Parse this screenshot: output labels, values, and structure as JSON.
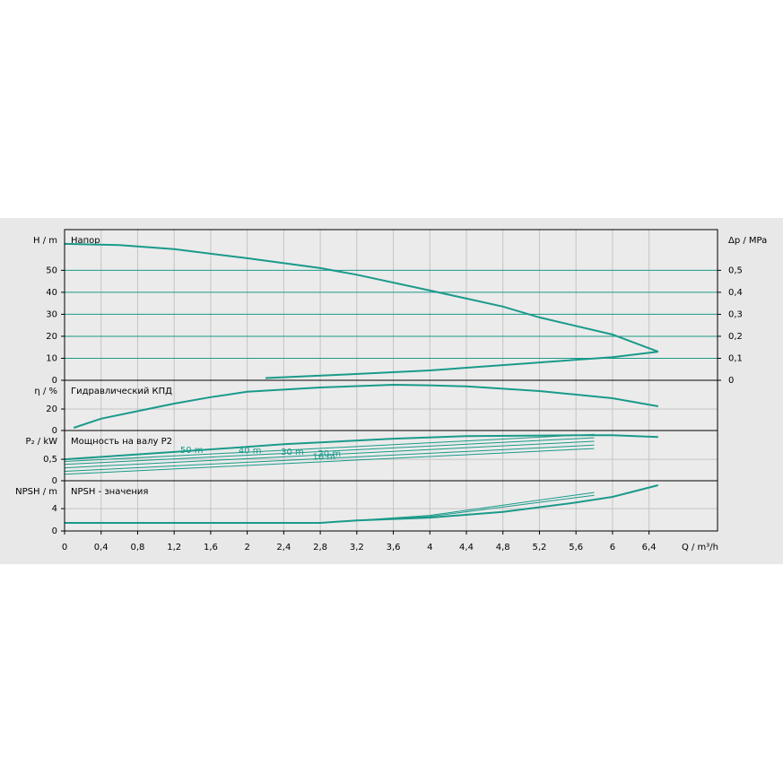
{
  "chart_data": [
    {
      "type": "line",
      "title": "Напор",
      "ylabel": "H / m",
      "y2label": "Δp / MPa",
      "xlim": [
        0,
        7.15
      ],
      "ylim": [
        0,
        68.5
      ],
      "yticks": [
        0,
        10,
        20,
        30,
        40,
        50
      ],
      "y2lim": [
        0,
        0.685
      ],
      "y2ticks": [
        0,
        {
          "value": 0.1,
          "label": "0,1"
        },
        {
          "value": 0.2,
          "label": "0,2"
        },
        {
          "value": 0.3,
          "label": "0,3"
        },
        {
          "value": 0.4,
          "label": "0,4"
        },
        {
          "value": 0.5,
          "label": "0,5"
        }
      ],
      "grid_color": "#1a9a8a",
      "series": [
        {
          "color": "#1a9a8a",
          "linewidth": 2,
          "x": [
            0,
            0.6,
            1.2,
            2,
            2.8,
            3.2,
            4,
            4.8,
            5.2,
            6,
            6.5
          ],
          "values": [
            62,
            61.5,
            59.6,
            55.5,
            51,
            48,
            40.8,
            33.5,
            28.6,
            20.8,
            13
          ]
        },
        {
          "color": "#1a9a8a",
          "linewidth": 2,
          "x": [
            2.2,
            3,
            4,
            5,
            6,
            6.5
          ],
          "values": [
            1,
            2.5,
            4.5,
            7.5,
            10.5,
            13
          ]
        }
      ]
    },
    {
      "type": "line",
      "title": "Гидравлический КПД",
      "ylabel": "η / %",
      "xlim": [
        0,
        7.15
      ],
      "ylim": [
        0,
        46.7
      ],
      "yticks": [
        0,
        20
      ],
      "grid_color": "#c4c4c4",
      "series": [
        {
          "color": "#1a9a8a",
          "linewidth": 2,
          "x": [
            0.1,
            0.4,
            0.8,
            1.2,
            1.6,
            2,
            2.8,
            3.6,
            4,
            4.4,
            5.2,
            6,
            6.5
          ],
          "values": [
            2.5,
            11,
            18,
            25,
            31,
            36,
            40,
            42.5,
            42,
            41,
            36.7,
            30,
            22.5
          ]
        }
      ]
    },
    {
      "type": "line",
      "title": "Мощность на валу P2",
      "ylabel": "P₂ / kW",
      "xlim": [
        0,
        7.15
      ],
      "ylim": [
        0,
        1.17
      ],
      "yticks": [
        0,
        {
          "value": 0.5,
          "label": "0,5"
        }
      ],
      "grid_color": "#c4c4c4",
      "series": [
        {
          "color": "#1a9a8a",
          "linewidth": 2,
          "x": [
            0,
            1.2,
            2.4,
            3.6,
            4.4,
            5.6,
            6,
            6.5
          ],
          "values": [
            0.5,
            0.67,
            0.85,
            0.98,
            1.04,
            1.06,
            1.06,
            1.02
          ]
        },
        {
          "name": "50 m",
          "color": "#1a9a8a",
          "linewidth": 1,
          "x": [
            0,
            5.8
          ],
          "values": [
            0.45,
            1.08
          ]
        },
        {
          "name": "40 m",
          "color": "#1a9a8a",
          "linewidth": 1,
          "x": [
            0,
            5.8
          ],
          "values": [
            0.38,
            1.0
          ]
        },
        {
          "name": "30 m",
          "color": "#1a9a8a",
          "linewidth": 1,
          "x": [
            0,
            5.8
          ],
          "values": [
            0.3,
            0.92
          ]
        },
        {
          "name": "20 m",
          "color": "#1a9a8a",
          "linewidth": 1,
          "x": [
            0,
            5.8
          ],
          "values": [
            0.22,
            0.83
          ]
        },
        {
          "name": "10 m",
          "color": "#1a9a8a",
          "linewidth": 1,
          "x": [
            0,
            5.8
          ],
          "values": [
            0.15,
            0.75
          ]
        }
      ]
    },
    {
      "type": "line",
      "title": "NPSH - значения",
      "ylabel": "NPSH / m",
      "xlabel": "Q / m³/h",
      "xlim": [
        0,
        7.15
      ],
      "ylim": [
        0,
        9
      ],
      "yticks": [
        0,
        4
      ],
      "grid_color": "#c4c4c4",
      "xticks": [
        0,
        {
          "value": 0.4,
          "label": "0,4"
        },
        {
          "value": 0.8,
          "label": "0,8"
        },
        {
          "value": 1.2,
          "label": "1,2"
        },
        {
          "value": 1.6,
          "label": "1,6"
        },
        2,
        {
          "value": 2.4,
          "label": "2,4"
        },
        {
          "value": 2.8,
          "label": "2,8"
        },
        {
          "value": 3.2,
          "label": "3,2"
        },
        {
          "value": 3.6,
          "label": "3,6"
        },
        4,
        {
          "value": 4.4,
          "label": "4,4"
        },
        {
          "value": 4.8,
          "label": "4,8"
        },
        {
          "value": 5.2,
          "label": "5,2"
        },
        {
          "value": 5.6,
          "label": "5,6"
        },
        6,
        {
          "value": 6.4,
          "label": "6,4"
        }
      ],
      "series": [
        {
          "color": "#1a9a8a",
          "linewidth": 2,
          "x": [
            0,
            2.8,
            3.2,
            4,
            4.8,
            5.6,
            6,
            6.5
          ],
          "values": [
            1.45,
            1.45,
            1.9,
            2.4,
            3.4,
            5.1,
            6.1,
            8.2
          ]
        },
        {
          "color": "#1a9a8a",
          "linewidth": 1,
          "x": [
            2.8,
            4,
            5.8
          ],
          "values": [
            1.45,
            2.8,
            6.9
          ]
        },
        {
          "color": "#1a9a8a",
          "linewidth": 1,
          "x": [
            2.8,
            4,
            5.8
          ],
          "values": [
            1.45,
            2.6,
            6.4
          ]
        }
      ]
    }
  ]
}
